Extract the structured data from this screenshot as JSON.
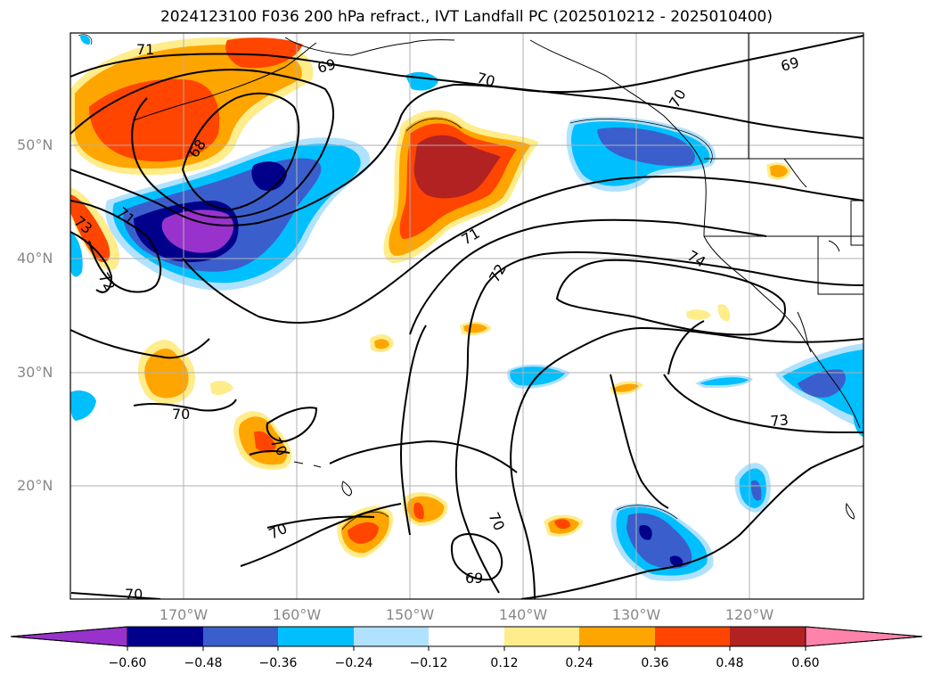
{
  "title": "2024123100 F036 200 hPa refract., IVT Landfall PC (2025010212 - 2025010400)",
  "map": {
    "lat_labels": [
      "50°N",
      "40°N",
      "30°N",
      "20°N"
    ],
    "lon_labels": [
      "170°W",
      "160°W",
      "150°W",
      "140°W",
      "130°W",
      "120°W"
    ],
    "contour_labels": [
      "71",
      "69",
      "70",
      "70",
      "68",
      "73",
      "71",
      "72",
      "74",
      "69",
      "70",
      "70",
      "70",
      "73",
      "69",
      "70",
      "71",
      "72"
    ]
  },
  "colorbar": {
    "tick_labels": [
      "−0.60",
      "−0.48",
      "−0.36",
      "−0.24",
      "−0.12",
      "0.12",
      "0.24",
      "0.36",
      "0.48",
      "0.60"
    ],
    "colors": [
      "#9932CC",
      "#00008B",
      "#3A5FCD",
      "#00BFFF",
      "#B0E2FF",
      "#FFFFFF",
      "#FFEC8B",
      "#FFA500",
      "#FF4500",
      "#B22222",
      "#FF82AB"
    ]
  }
}
